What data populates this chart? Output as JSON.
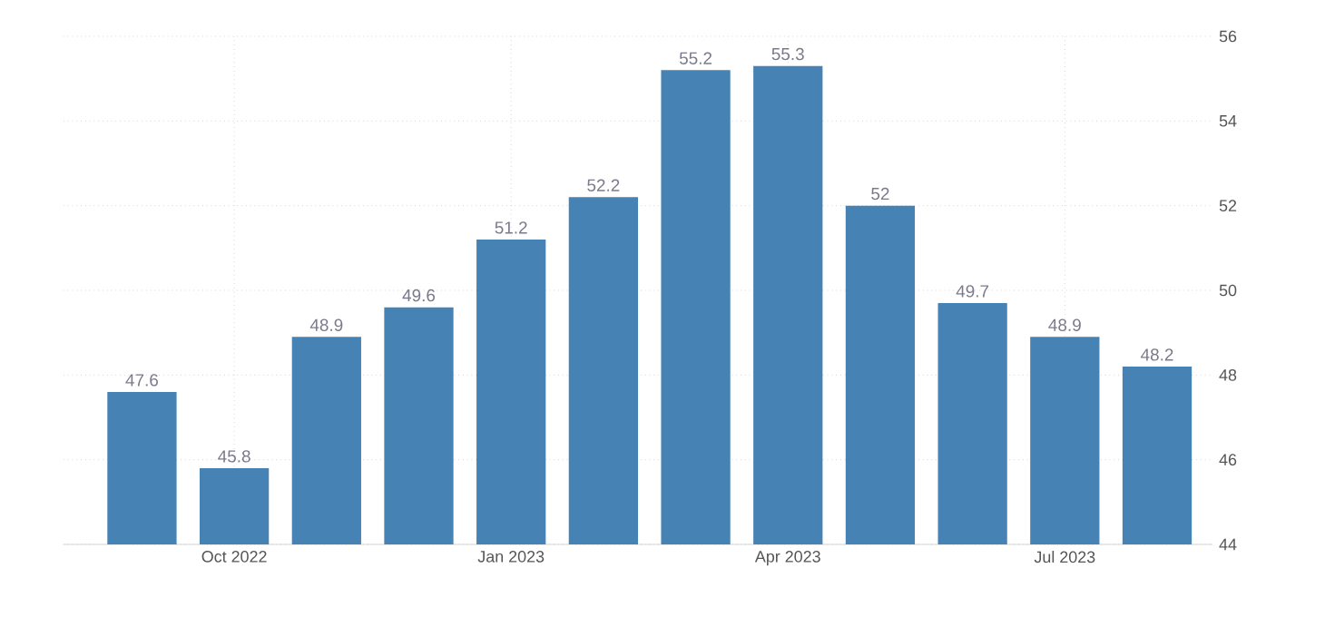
{
  "chart_data": {
    "type": "bar",
    "categories": [
      null,
      "Oct 2022",
      null,
      null,
      "Jan 2023",
      null,
      null,
      "Apr 2023",
      null,
      null,
      "Jul 2023",
      null
    ],
    "values": [
      47.6,
      45.8,
      48.9,
      49.6,
      51.2,
      52.2,
      55.2,
      55.3,
      52,
      49.7,
      48.9,
      48.2
    ],
    "color": "#4682b4",
    "ylim": [
      44,
      56
    ],
    "yticks": [
      44,
      46,
      48,
      50,
      52,
      54,
      56
    ],
    "grid": true,
    "data_labels": true
  }
}
